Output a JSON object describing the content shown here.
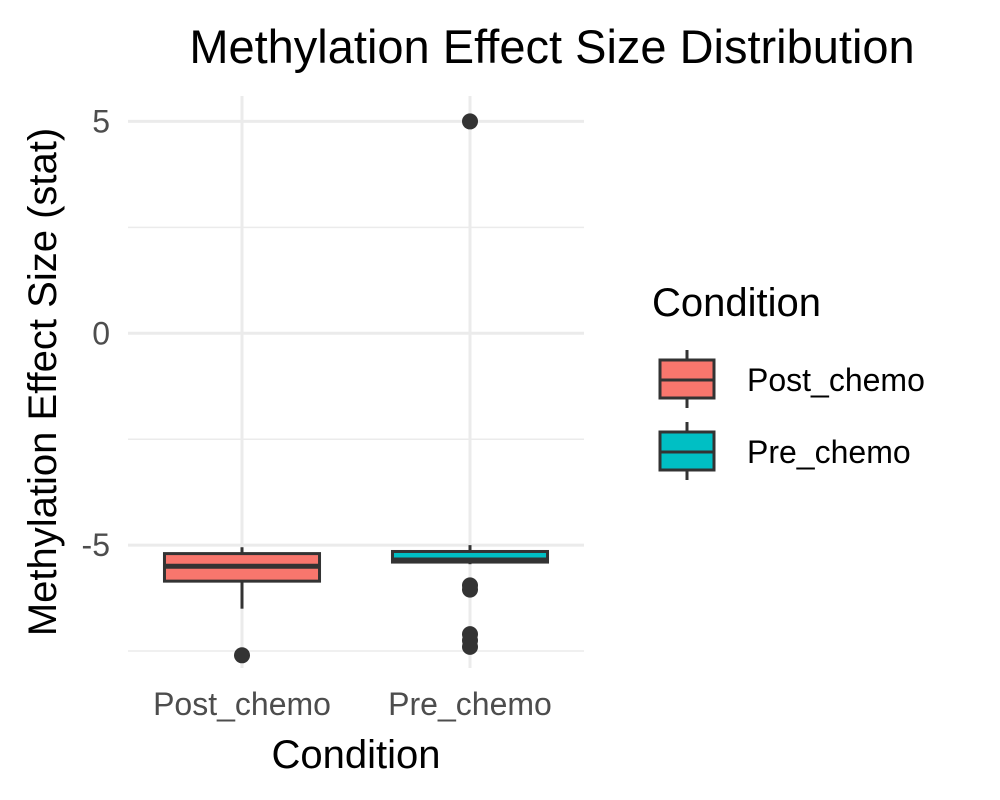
{
  "chart_data": {
    "type": "boxplot",
    "title": "Methylation Effect Size Distribution",
    "xlabel": "Condition",
    "ylabel": "Methylation Effect Size (stat)",
    "ylim": [
      -7.9,
      5.6
    ],
    "y_ticks": [
      -5,
      0,
      5
    ],
    "y_tick_labels": [
      "-5",
      "0",
      "5"
    ],
    "categories": [
      "Post_chemo",
      "Pre_chemo"
    ],
    "grid": true,
    "series": [
      {
        "name": "Post_chemo",
        "color": "#F8766D",
        "whisker_low": -6.5,
        "q1": -5.85,
        "median": -5.5,
        "q3": -5.2,
        "whisker_high": -5.05,
        "outliers": [
          -7.6
        ]
      },
      {
        "name": "Pre_chemo",
        "color": "#00BFC4",
        "whisker_low": -5.45,
        "q1": -5.4,
        "median": -5.35,
        "q3": -5.15,
        "whisker_high": -5.0,
        "outliers": [
          5.0,
          -5.95,
          -6.05,
          -7.1,
          -7.25,
          -7.4
        ]
      }
    ],
    "legend": {
      "title": "Condition",
      "position": "right",
      "items": [
        "Post_chemo",
        "Pre_chemo"
      ]
    }
  }
}
